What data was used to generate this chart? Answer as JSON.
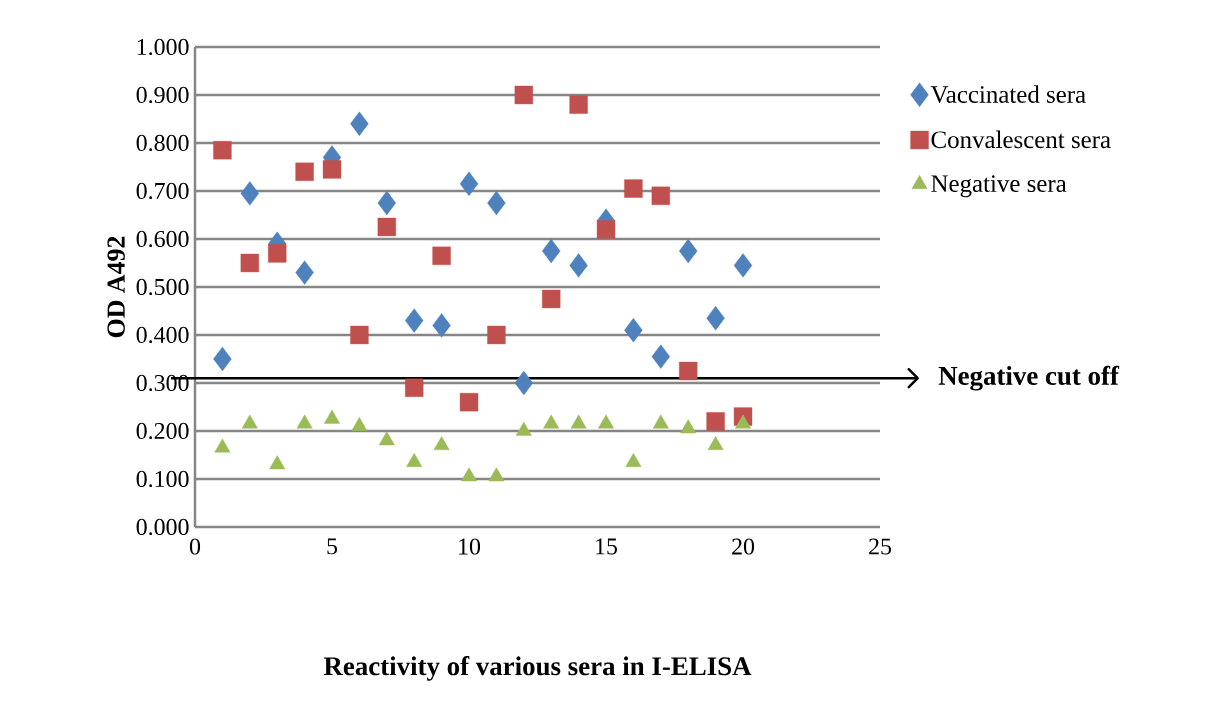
{
  "chart_data": {
    "type": "scatter",
    "xlabel": "Reactivity of various sera in I-ELISA",
    "ylabel": "OD  A492",
    "x": [
      1,
      2,
      3,
      4,
      5,
      6,
      7,
      8,
      9,
      10,
      11,
      12,
      13,
      14,
      15,
      16,
      17,
      18,
      19,
      20
    ],
    "series": [
      {
        "name": "Vaccinated sera",
        "color": "#4f81bd",
        "marker": "diamond",
        "values": [
          0.35,
          0.695,
          0.59,
          0.53,
          0.77,
          0.84,
          0.675,
          0.43,
          0.42,
          0.715,
          0.675,
          0.3,
          0.575,
          0.545,
          0.638,
          0.41,
          0.355,
          0.575,
          0.435,
          0.545
        ]
      },
      {
        "name": "Convalescent sera",
        "color": "#c0504d",
        "marker": "square",
        "values": [
          0.785,
          0.55,
          0.57,
          0.74,
          0.745,
          0.4,
          0.625,
          0.29,
          0.565,
          0.26,
          0.4,
          0.9,
          0.475,
          0.88,
          0.62,
          0.705,
          0.69,
          0.325,
          0.22,
          0.23
        ]
      },
      {
        "name": "Negative sera",
        "color": "#9bbb59",
        "marker": "triangle",
        "values": [
          0.165,
          0.215,
          0.13,
          0.215,
          0.225,
          0.21,
          0.18,
          0.135,
          0.17,
          0.105,
          0.105,
          0.2,
          0.215,
          0.215,
          0.215,
          0.135,
          0.215,
          0.205,
          0.17,
          0.215
        ]
      }
    ],
    "xlim": [
      0,
      25
    ],
    "xticks": [
      0,
      5,
      10,
      15,
      20,
      25
    ],
    "ylim": [
      0,
      1
    ],
    "yticks": [
      {
        "value": 0,
        "label": "0.000"
      },
      {
        "value": 0.1,
        "label": "0.100"
      },
      {
        "value": 0.2,
        "label": "0.200"
      },
      {
        "value": 0.3,
        "label": "0.300"
      },
      {
        "value": 0.4,
        "label": "0.400"
      },
      {
        "value": 0.5,
        "label": "0.500"
      },
      {
        "value": 0.6,
        "label": "0.600"
      },
      {
        "value": 0.7,
        "label": "0.700"
      },
      {
        "value": 0.8,
        "label": "0.800"
      },
      {
        "value": 0.9,
        "label": "0.900"
      },
      {
        "value": 1,
        "label": "1.000"
      }
    ],
    "ref_lines": [
      {
        "axis": "y",
        "value": 0.31,
        "label": "Negative cut off",
        "color": "#000000",
        "line_style": "solid"
      }
    ],
    "grid": "y",
    "legend": "right"
  }
}
